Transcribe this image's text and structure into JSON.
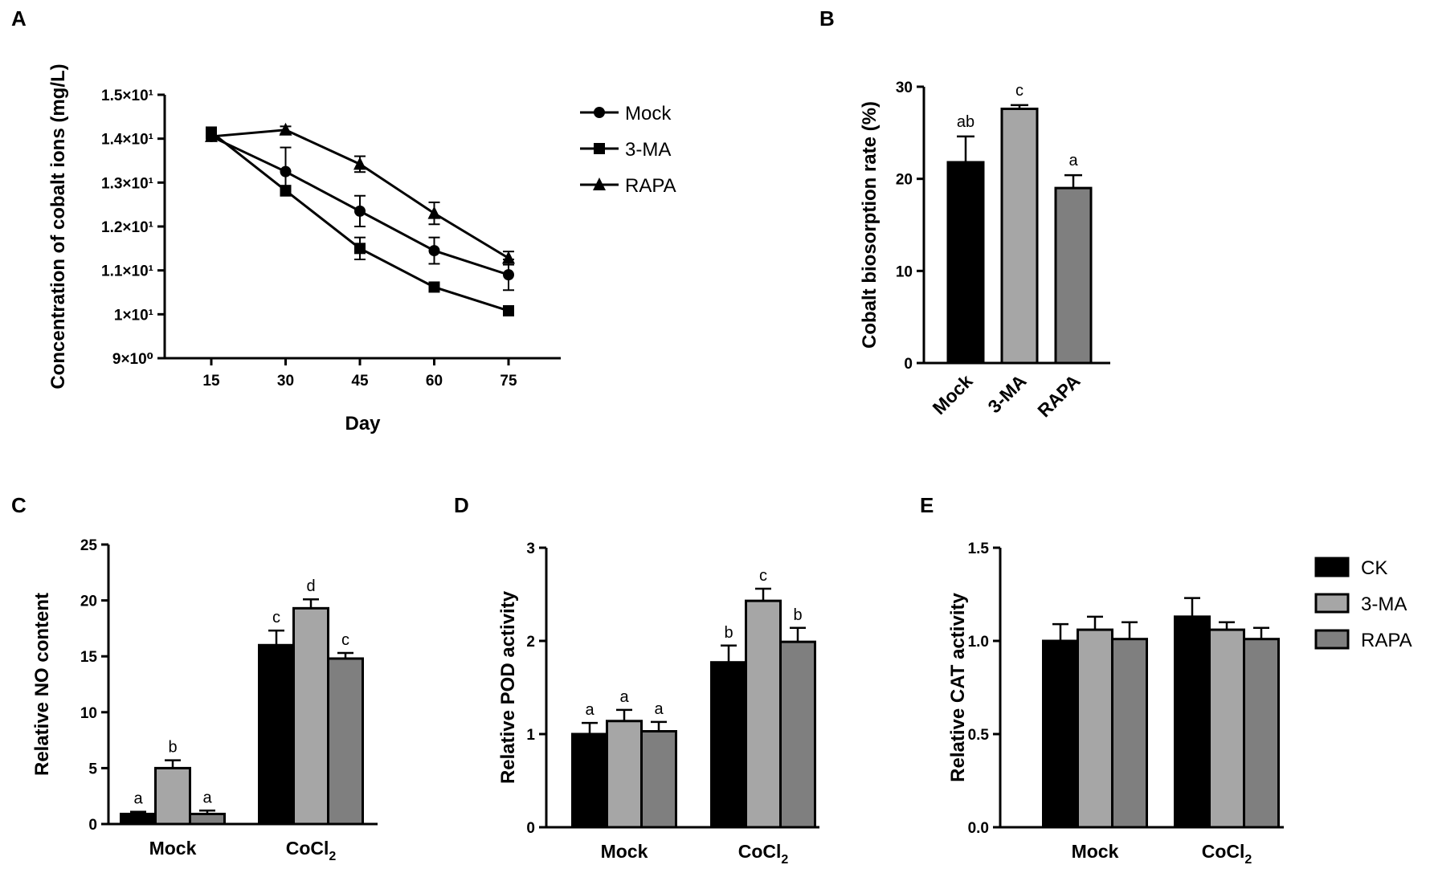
{
  "chart_data": [
    {
      "panel": "A",
      "type": "line",
      "title": "",
      "xlabel": "Day",
      "ylabel": "Concentration of cobalt ions (mg/L)",
      "x": [
        15,
        30,
        45,
        60,
        75
      ],
      "x_tick_labels": [
        "15",
        "30",
        "45",
        "60",
        "75"
      ],
      "y_tick_labels": [
        "1.5×10¹",
        "1.4×10¹",
        "1.3×10¹",
        "1.2×10¹",
        "1.1×10¹",
        "1×10¹",
        "9×10⁰"
      ],
      "y_tick_values": [
        15,
        14,
        13,
        12,
        11,
        10,
        9
      ],
      "ylim": [
        9,
        15
      ],
      "legend_position": "right",
      "series": [
        {
          "name": "Mock",
          "marker": "circle",
          "values": [
            14.05,
            13.25,
            12.35,
            11.45,
            10.9
          ],
          "errors": [
            0.05,
            0.55,
            0.35,
            0.3,
            0.35
          ]
        },
        {
          "name": "3-MA",
          "marker": "square",
          "values": [
            14.15,
            12.82,
            11.5,
            10.62,
            10.08
          ],
          "errors": [
            0.05,
            0.1,
            0.25,
            0.05,
            0.05
          ]
        },
        {
          "name": "RAPA",
          "marker": "triangle",
          "values": [
            14.05,
            14.2,
            13.42,
            12.3,
            11.28
          ],
          "errors": [
            0.05,
            0.08,
            0.18,
            0.25,
            0.15
          ]
        }
      ]
    },
    {
      "panel": "B",
      "type": "bar",
      "ylabel": "Cobalt biosorption rate (%)",
      "categories": [
        "Mock",
        "3-MA",
        "RAPA"
      ],
      "values": [
        21.8,
        27.6,
        19.0
      ],
      "errors": [
        2.8,
        0.4,
        1.4
      ],
      "letters": [
        "ab",
        "c",
        "a"
      ],
      "colors": [
        "#000000",
        "#a6a6a6",
        "#7f7f7f"
      ],
      "ylim": [
        0,
        30
      ],
      "y_ticks": [
        0,
        10,
        20,
        30
      ],
      "y_tick_labels": [
        "0",
        "10",
        "20",
        "30"
      ]
    },
    {
      "panel": "C",
      "type": "bar",
      "ylabel": "Relative NO content",
      "categories": [
        "Mock",
        "CoCl"
      ],
      "category_subscripts": [
        "",
        "2"
      ],
      "series": [
        {
          "name": "CK",
          "values": [
            0.9,
            16.0
          ],
          "errors": [
            0.2,
            1.3
          ],
          "letters": [
            "a",
            "c"
          ]
        },
        {
          "name": "3-MA",
          "values": [
            5.0,
            19.3
          ],
          "errors": [
            0.7,
            0.8
          ],
          "letters": [
            "b",
            "d"
          ]
        },
        {
          "name": "RAPA",
          "values": [
            0.9,
            14.8
          ],
          "errors": [
            0.3,
            0.5
          ],
          "letters": [
            "a",
            "c"
          ]
        }
      ],
      "ylim": [
        0,
        25
      ],
      "y_ticks": [
        0,
        5,
        10,
        15,
        20,
        25
      ],
      "y_tick_labels": [
        "0",
        "5",
        "10",
        "15",
        "20",
        "25"
      ]
    },
    {
      "panel": "D",
      "type": "bar",
      "ylabel": "Relative POD activity",
      "categories": [
        "Mock",
        "CoCl"
      ],
      "category_subscripts": [
        "",
        "2"
      ],
      "series": [
        {
          "name": "CK",
          "values": [
            1.0,
            1.77
          ],
          "errors": [
            0.12,
            0.18
          ],
          "letters": [
            "a",
            "b"
          ]
        },
        {
          "name": "3-MA",
          "values": [
            1.14,
            2.43
          ],
          "errors": [
            0.12,
            0.13
          ],
          "letters": [
            "a",
            "c"
          ]
        },
        {
          "name": "RAPA",
          "values": [
            1.03,
            1.99
          ],
          "errors": [
            0.1,
            0.15
          ],
          "letters": [
            "a",
            "b"
          ]
        }
      ],
      "ylim": [
        0,
        3
      ],
      "y_ticks": [
        0,
        1,
        2,
        3
      ],
      "y_tick_labels": [
        "0",
        "1",
        "2",
        "3"
      ]
    },
    {
      "panel": "E",
      "type": "bar",
      "ylabel": "Relative CAT activity",
      "categories": [
        "Mock",
        "CoCl"
      ],
      "category_subscripts": [
        "",
        "2"
      ],
      "series": [
        {
          "name": "CK",
          "values": [
            1.0,
            1.13
          ],
          "errors": [
            0.09,
            0.1
          ],
          "letters": [
            "",
            ""
          ]
        },
        {
          "name": "3-MA",
          "values": [
            1.06,
            1.06
          ],
          "errors": [
            0.07,
            0.04
          ],
          "letters": [
            "",
            ""
          ]
        },
        {
          "name": "RAPA",
          "values": [
            1.01,
            1.01
          ],
          "errors": [
            0.09,
            0.06
          ],
          "letters": [
            "",
            ""
          ]
        }
      ],
      "ylim": [
        0,
        1.5
      ],
      "y_ticks": [
        0,
        0.5,
        1.0,
        1.5
      ],
      "y_tick_labels": [
        "0.0",
        "0.5",
        "1.0",
        "1.5"
      ],
      "legend": [
        "CK",
        "3-MA",
        "RAPA"
      ],
      "legend_position": "right",
      "colors": [
        "#000000",
        "#a6a6a6",
        "#7f7f7f"
      ]
    }
  ]
}
